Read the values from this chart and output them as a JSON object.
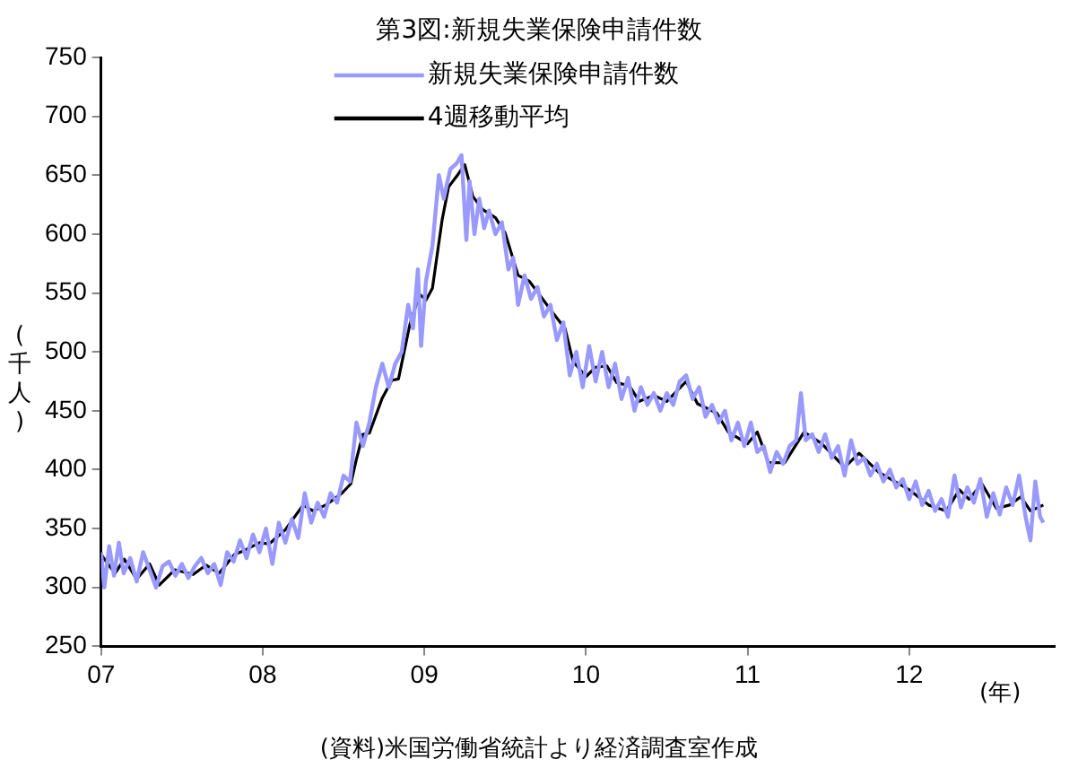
{
  "chart_data": {
    "type": "line",
    "title": "第3図:新規失業保険申請件数",
    "ylabel": "(千人)",
    "xlabel": "(年)",
    "annotations": [
      "(資料)米国労働省統計より経済調査室作成"
    ],
    "xlim": [
      2007,
      2012.9
    ],
    "xticks": [
      {
        "value": 2007,
        "label": "07"
      },
      {
        "value": 2008,
        "label": "08"
      },
      {
        "value": 2009,
        "label": "09"
      },
      {
        "value": 2010,
        "label": "10"
      },
      {
        "value": 2011,
        "label": "11"
      },
      {
        "value": 2012,
        "label": "12"
      }
    ],
    "ylim": [
      250,
      750
    ],
    "yticks": [
      250,
      300,
      350,
      400,
      450,
      500,
      550,
      600,
      650,
      700,
      750
    ],
    "grid": false,
    "legend": "top",
    "marker": "none",
    "line_style": "solid",
    "series": [
      {
        "name": "新規失業保険申請件数",
        "color": "#9999ff",
        "x": [
          2007.0,
          2007.02,
          2007.05,
          2007.08,
          2007.11,
          2007.14,
          2007.18,
          2007.22,
          2007.26,
          2007.3,
          2007.34,
          2007.38,
          2007.42,
          2007.46,
          2007.5,
          2007.54,
          2007.58,
          2007.62,
          2007.66,
          2007.7,
          2007.74,
          2007.78,
          2007.82,
          2007.86,
          2007.9,
          2007.94,
          2007.98,
          2008.02,
          2008.06,
          2008.1,
          2008.14,
          2008.18,
          2008.22,
          2008.26,
          2008.3,
          2008.34,
          2008.38,
          2008.42,
          2008.46,
          2008.5,
          2008.54,
          2008.58,
          2008.62,
          2008.66,
          2008.7,
          2008.74,
          2008.78,
          2008.82,
          2008.86,
          2008.9,
          2008.93,
          2008.96,
          2008.98,
          2009.01,
          2009.05,
          2009.09,
          2009.12,
          2009.16,
          2009.2,
          2009.23,
          2009.26,
          2009.28,
          2009.31,
          2009.34,
          2009.37,
          2009.4,
          2009.44,
          2009.48,
          2009.52,
          2009.55,
          2009.58,
          2009.62,
          2009.66,
          2009.7,
          2009.74,
          2009.78,
          2009.82,
          2009.86,
          2009.9,
          2009.94,
          2009.98,
          2010.02,
          2010.06,
          2010.1,
          2010.14,
          2010.18,
          2010.22,
          2010.26,
          2010.3,
          2010.34,
          2010.38,
          2010.42,
          2010.46,
          2010.5,
          2010.54,
          2010.58,
          2010.62,
          2010.66,
          2010.7,
          2010.74,
          2010.78,
          2010.82,
          2010.86,
          2010.9,
          2010.94,
          2010.98,
          2011.02,
          2011.06,
          2011.1,
          2011.14,
          2011.18,
          2011.22,
          2011.26,
          2011.3,
          2011.33,
          2011.36,
          2011.4,
          2011.44,
          2011.48,
          2011.52,
          2011.56,
          2011.6,
          2011.64,
          2011.68,
          2011.72,
          2011.76,
          2011.8,
          2011.84,
          2011.88,
          2011.92,
          2011.96,
          2012.0,
          2012.04,
          2012.08,
          2012.12,
          2012.16,
          2012.2,
          2012.24,
          2012.28,
          2012.32,
          2012.36,
          2012.4,
          2012.44,
          2012.48,
          2012.52,
          2012.56,
          2012.6,
          2012.64,
          2012.68,
          2012.72,
          2012.75,
          2012.78,
          2012.81,
          2012.83
        ],
        "values": [
          330,
          300,
          335,
          310,
          338,
          312,
          325,
          305,
          330,
          315,
          300,
          318,
          322,
          310,
          320,
          308,
          318,
          325,
          312,
          320,
          302,
          330,
          322,
          340,
          325,
          345,
          330,
          350,
          320,
          355,
          338,
          358,
          342,
          380,
          355,
          372,
          360,
          380,
          372,
          395,
          390,
          440,
          420,
          440,
          470,
          490,
          470,
          490,
          500,
          540,
          520,
          570,
          505,
          560,
          590,
          650,
          630,
          655,
          660,
          667,
          595,
          645,
          600,
          630,
          605,
          620,
          600,
          610,
          570,
          580,
          540,
          565,
          545,
          555,
          530,
          540,
          510,
          525,
          480,
          500,
          470,
          505,
          475,
          500,
          470,
          490,
          460,
          478,
          450,
          470,
          455,
          465,
          450,
          465,
          455,
          475,
          480,
          460,
          470,
          445,
          455,
          440,
          450,
          425,
          440,
          420,
          440,
          415,
          420,
          398,
          415,
          405,
          420,
          425,
          465,
          425,
          430,
          415,
          430,
          410,
          420,
          395,
          425,
          405,
          410,
          395,
          405,
          390,
          400,
          385,
          392,
          375,
          390,
          370,
          382,
          365,
          375,
          360,
          395,
          368,
          385,
          372,
          392,
          360,
          380,
          362,
          385,
          370,
          395,
          360,
          340,
          390,
          360,
          355
        ]
      },
      {
        "name": "4週移動平均",
        "color": "#000000",
        "x": [
          2007.0,
          2007.086,
          2007.144,
          2007.22,
          2007.3,
          2007.36,
          2007.455,
          2007.57,
          2007.65,
          2007.73,
          2007.825,
          2007.88,
          2007.98,
          2008.04,
          2008.14,
          2008.25,
          2008.31,
          2008.39,
          2008.49,
          2008.545,
          2008.58,
          2008.62,
          2008.66,
          2008.74,
          2008.8,
          2008.84,
          2008.91,
          2008.97,
          2009.01,
          2009.05,
          2009.11,
          2009.15,
          2009.21,
          2009.25,
          2009.3,
          2009.36,
          2009.44,
          2009.5,
          2009.58,
          2009.65,
          2009.71,
          2009.79,
          2009.87,
          2009.92,
          2010.0,
          2010.06,
          2010.13,
          2010.19,
          2010.27,
          2010.33,
          2010.42,
          2010.5,
          2010.62,
          2010.69,
          2010.81,
          2010.88,
          2011.0,
          2011.06,
          2011.13,
          2011.23,
          2011.35,
          2011.46,
          2011.6,
          2011.69,
          2011.81,
          2012.0,
          2012.12,
          2012.23,
          2012.31,
          2012.37,
          2012.45,
          2012.54,
          2012.62,
          2012.69,
          2012.75,
          2012.83
        ],
        "values": [
          328,
          312,
          324,
          307,
          320,
          302,
          315,
          311,
          319,
          312,
          328,
          331,
          338,
          337,
          349,
          370,
          365,
          370,
          380,
          388,
          409,
          430,
          431,
          461,
          476,
          477,
          523,
          549,
          544,
          554,
          612,
          640,
          651,
          659,
          632,
          621,
          614,
          601,
          565,
          560,
          549,
          534,
          520,
          492,
          479,
          487,
          488,
          474,
          471,
          458,
          463,
          458,
          475,
          456,
          448,
          432,
          422,
          432,
          406,
          406,
          432,
          422,
          402,
          414,
          398,
          383,
          370,
          365,
          383,
          375,
          388,
          367,
          370,
          377,
          365,
          370
        ]
      }
    ]
  }
}
